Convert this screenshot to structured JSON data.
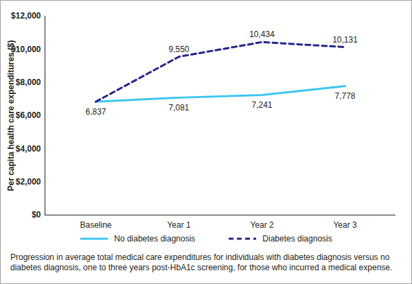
{
  "chart_data": {
    "type": "line",
    "caption": "Progression in average total medical care expenditures for individuals with diabetes diagnosis versus no diabetes diagnosis, one to three years post-HbA1c screening, for those who incurred a medical expense.",
    "y_label": "Per capita health care expenditures ($)",
    "categories": [
      "Baseline",
      "Year 1",
      "Year 2",
      "Year 3"
    ],
    "series": [
      {
        "name": "No diabetes diagnosis",
        "color": "#3ec6f2",
        "line_style": "solid",
        "values": [
          6837,
          7081,
          7241,
          7778
        ],
        "value_labels": [
          "6,837",
          "7,081",
          "7,241",
          "7,778"
        ]
      },
      {
        "name": "Diabetes diagnosis",
        "color": "#24248c",
        "line_style": "dashed",
        "values": [
          6837,
          9550,
          10434,
          10131
        ],
        "value_labels": [
          null,
          "9,550",
          "10,434",
          "10,131"
        ]
      }
    ],
    "ylim": [
      0,
      12000
    ],
    "yticks": [
      {
        "value": 0,
        "label": "$0"
      },
      {
        "value": 2000,
        "label": "$2,000"
      },
      {
        "value": 4000,
        "label": "$4,000"
      },
      {
        "value": 6000,
        "label": "$6,000"
      },
      {
        "value": 8000,
        "label": "$8,000"
      },
      {
        "value": 10000,
        "label": "$10,000"
      },
      {
        "value": 12000,
        "label": "$12,000"
      }
    ],
    "grid": false,
    "data_labels": true,
    "legend": "bottom"
  }
}
